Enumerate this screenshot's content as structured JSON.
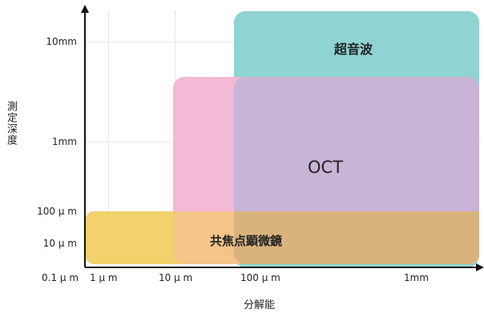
{
  "axes": {
    "x_title": "分解能",
    "y_title": "測定深度",
    "x_ticks": [
      "0.1 μ m",
      "1 μ m",
      "10 μ m",
      "100 μ m",
      "1mm"
    ],
    "y_ticks": [
      "10mm",
      "1mm",
      "100 μ m",
      "10 μ m"
    ]
  },
  "regions": [
    {
      "key": "ultrasound",
      "label": "超音波",
      "color": "#8fd3d2"
    },
    {
      "key": "confocal",
      "label": "共焦点顕微鏡",
      "color": "#f2d26a"
    },
    {
      "key": "pink_zone",
      "label": "",
      "color": "#f3b9d5"
    },
    {
      "key": "oct",
      "label": "OCT",
      "color": "#c8b4d6"
    }
  ],
  "colors": {
    "axis": "#111111",
    "ultrasound": "#8fd3d2",
    "confocal": "#f2d26a",
    "pink_zone": "#f3b9d5",
    "oct": "#c8b4d6",
    "oct_over_confocal": "#d9b37c"
  }
}
